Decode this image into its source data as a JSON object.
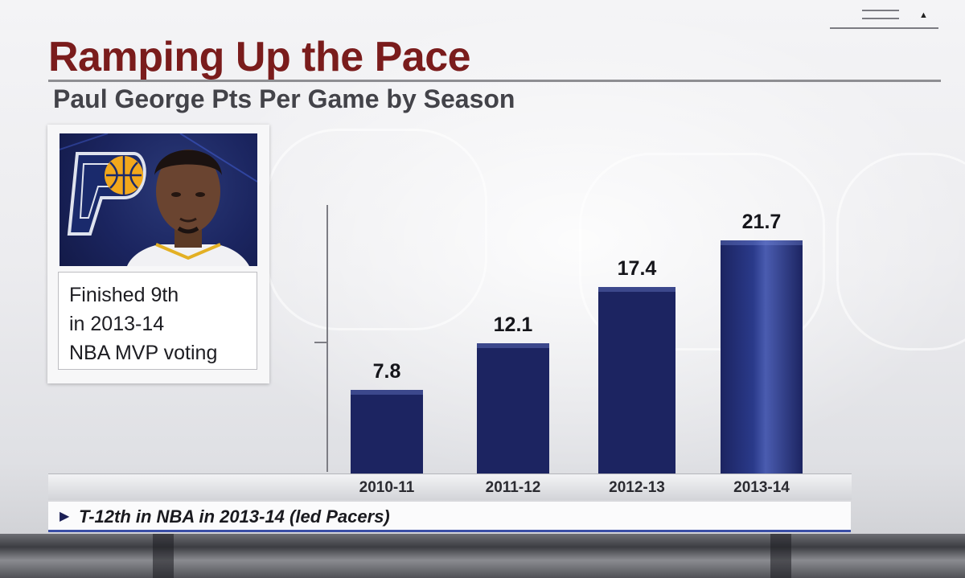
{
  "title": "Ramping Up the Pace",
  "subtitle": "Paul George Pts Per Game by Season",
  "card": {
    "lines": [
      "Finished 9th",
      "in 2013-14",
      "NBA MVP voting"
    ]
  },
  "footer": {
    "arrow_icon": "play-arrow-icon",
    "text": "T-12th in NBA in 2013-14 (led Pacers)"
  },
  "colors": {
    "title": "#7a1c1c",
    "bar": "#1c2461",
    "bar_highlight": "#2a3a8a",
    "accent_line": "#3a4ea6"
  },
  "chart_data": {
    "type": "bar",
    "title": "Paul George Pts Per Game by Season",
    "categories": [
      "2010-11",
      "2011-12",
      "2012-13",
      "2013-14"
    ],
    "values": [
      7.8,
      12.1,
      17.4,
      21.7
    ],
    "data_labels": [
      "7.8",
      "12.1",
      "17.4",
      "21.7"
    ],
    "xlabel": "",
    "ylabel": "",
    "ylim": [
      0,
      25
    ],
    "grid": false,
    "highlight_category": "2013-14"
  }
}
